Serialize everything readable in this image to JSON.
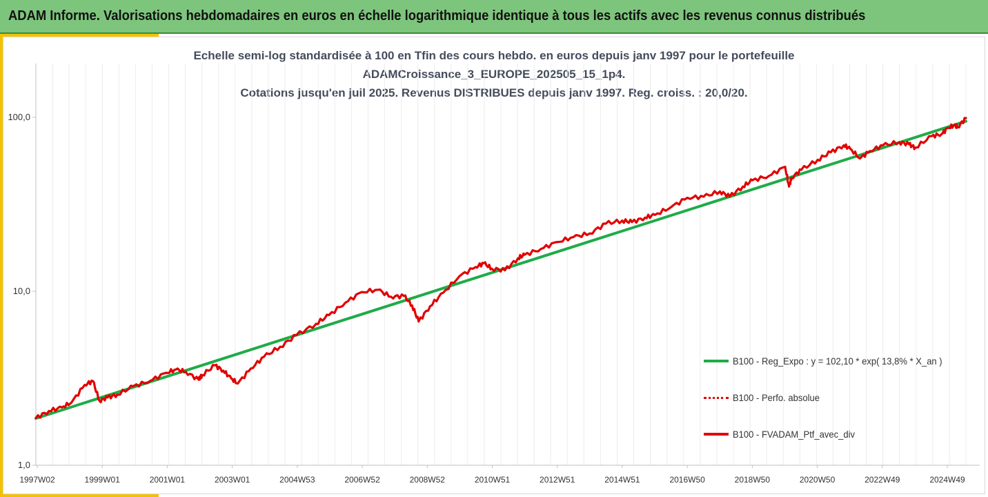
{
  "banner": {
    "title": "ADAM Informe. Valorisations hebdomadaires en euros en échelle logarithmique identique à tous les actifs avec les revenus connus distribués"
  },
  "colors": {
    "banner_bg": "#7dc57c",
    "accent": "#f2c200",
    "series_red": "#e00000",
    "series_green": "#1fab48"
  },
  "chart_data": {
    "type": "line",
    "title_lines": [
      "Echelle semi-log standardisée à 100 en Tfin des cours hebdo.  en euros depuis janv 1997 pour le portefeuille",
      "ADAMCroissance_3_EUROPE_202505_15_1p4.",
      "Cotations  jusqu'en juil 2025. Revenus DISTRIBUES depuis janv 1997. Reg. croiss. : 20,0/20."
    ],
    "y_scale": "log",
    "ylim": [
      1,
      100
    ],
    "y_ticks": [
      "1,0",
      "10,0",
      "100,0"
    ],
    "x_range": [
      1997.0,
      2025.55
    ],
    "x_tick_labels": [
      "1997W02",
      "1999W01",
      "2001W01",
      "2003W01",
      "2004W53",
      "2006W52",
      "2008W52",
      "2010W51",
      "2012W51",
      "2014W51",
      "2016W50",
      "2018W50",
      "2020W50",
      "2022W49",
      "2024W49"
    ],
    "grid": "vertical",
    "legend_position": "right",
    "series": [
      {
        "name": "B100 - Reg_Expo : y = 102,10 * exp( 13,8% *  X_an )",
        "color": "#1fab48",
        "style": "solid",
        "x": [
          1997.0,
          2025.55
        ],
        "y": [
          1.86,
          95.0
        ]
      },
      {
        "name": "B100 - Perfo. absolue",
        "color": "#e00000",
        "style": "dotted",
        "x": [],
        "y": []
      },
      {
        "name": "B100 - FVADAM_Ptf_avec_div",
        "color": "#e00000",
        "style": "solid",
        "x": [
          1997.0,
          1997.4,
          1997.8,
          1998.1,
          1998.5,
          1998.75,
          1998.95,
          1999.2,
          1999.5,
          2000.0,
          2000.5,
          2001.0,
          2001.3,
          2001.6,
          2002.0,
          2002.1,
          2002.5,
          2002.75,
          2003.0,
          2003.2,
          2003.6,
          2004.0,
          2004.5,
          2005.0,
          2005.6,
          2006.0,
          2006.5,
          2007.0,
          2007.5,
          2007.9,
          2008.3,
          2008.55,
          2008.75,
          2009.1,
          2009.5,
          2010.0,
          2010.5,
          2010.75,
          2011.0,
          2011.4,
          2011.8,
          2012.0,
          2012.5,
          2013.0,
          2013.5,
          2014.0,
          2014.5,
          2015.0,
          2015.3,
          2015.7,
          2016.0,
          2016.5,
          2017.0,
          2017.5,
          2018.0,
          2018.3,
          2018.7,
          2019.0,
          2019.5,
          2020.0,
          2020.12,
          2020.2,
          2020.5,
          2021.0,
          2021.4,
          2021.8,
          2022.0,
          2022.3,
          2022.6,
          2023.0,
          2023.5,
          2023.8,
          2024.0,
          2024.5,
          2024.8,
          2025.0,
          2025.2,
          2025.3,
          2025.55
        ],
        "y": [
          1.87,
          2.05,
          2.15,
          2.3,
          2.9,
          3.05,
          2.35,
          2.45,
          2.55,
          2.85,
          3.05,
          3.4,
          3.55,
          3.45,
          3.1,
          3.3,
          3.75,
          3.5,
          3.15,
          2.95,
          3.6,
          4.2,
          4.8,
          5.6,
          6.5,
          7.3,
          8.6,
          9.9,
          10.2,
          9.3,
          9.4,
          8.3,
          6.7,
          8.2,
          9.8,
          12.2,
          13.8,
          14.5,
          13.5,
          13.2,
          15.5,
          16.2,
          17.5,
          19.2,
          20.5,
          21.5,
          24.5,
          25.5,
          25.0,
          26.5,
          27.5,
          30.5,
          34.5,
          35.0,
          37.5,
          35.0,
          40.0,
          43.5,
          46.0,
          52.0,
          40.0,
          45.0,
          50.0,
          57.0,
          63.0,
          69.0,
          66.0,
          58.0,
          64.0,
          69.0,
          72.0,
          70.0,
          67.0,
          78.0,
          80.0,
          87.0,
          90.0,
          88.0,
          99.0
        ]
      }
    ]
  }
}
